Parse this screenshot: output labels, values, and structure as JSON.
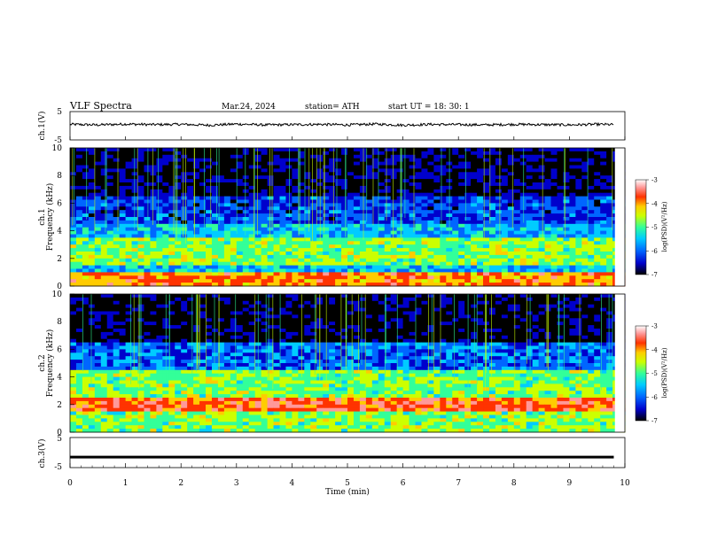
{
  "header": {
    "title": "VLF Spectra",
    "date": "Mar.24, 2024",
    "station": "station= ATH",
    "start": "start UT = 18: 30: 1"
  },
  "chart_data": [
    {
      "type": "line",
      "panel": "ch1-waveform",
      "ylabel": "ch.1(V)",
      "xlim": [
        0,
        10
      ],
      "ylim": [
        -5,
        5
      ],
      "yticks": [
        "5",
        "-5"
      ],
      "x": [
        0,
        0.5,
        1,
        1.5,
        2,
        2.5,
        3,
        3.5,
        4,
        4.5,
        5,
        5.5,
        6,
        6.5,
        7,
        7.5,
        8,
        8.5,
        9,
        9.5,
        9.8
      ],
      "values": [
        0.5,
        0.3,
        0.6,
        0.4,
        0.5,
        0.2,
        0.6,
        0.3,
        0.4,
        0.5,
        0.3,
        0.6,
        0.2,
        0.5,
        0.4,
        0.3,
        0.5,
        0.4,
        0.3,
        0.5,
        0.4
      ]
    },
    {
      "type": "heatmap",
      "panel": "ch1-spectrogram",
      "ylabel": "ch.1 Frequency (kHz)",
      "xlim": [
        0,
        10
      ],
      "ylim": [
        0,
        10
      ],
      "yticks": [
        "0",
        "2",
        "4",
        "6",
        "8",
        "10"
      ],
      "colorbar": {
        "label": "log(PSD)(V²/Hz)",
        "range": [
          -7,
          -3
        ],
        "ticks": [
          "-3",
          "-4",
          "-5",
          "-6",
          "-7"
        ]
      },
      "bands_khz": [
        {
          "from": 0,
          "to": 1,
          "level": -4.2
        },
        {
          "from": 1,
          "to": 1.5,
          "level": -5.6
        },
        {
          "from": 1.5,
          "to": 3.5,
          "level": -5.0
        },
        {
          "from": 3.5,
          "to": 4.5,
          "level": -5.7
        },
        {
          "from": 4.5,
          "to": 6.5,
          "level": -6.2
        },
        {
          "from": 6.5,
          "to": 10,
          "level": -6.7
        }
      ]
    },
    {
      "type": "heatmap",
      "panel": "ch2-spectrogram",
      "ylabel": "ch.2 Frequency (kHz)",
      "xlim": [
        0,
        10
      ],
      "ylim": [
        0,
        10
      ],
      "yticks": [
        "0",
        "2",
        "4",
        "6",
        "8",
        "10"
      ],
      "colorbar": {
        "label": "log(PSD)(V²/Hz)",
        "range": [
          -7,
          -3
        ],
        "ticks": [
          "-3",
          "-4",
          "-5",
          "-6",
          "-7"
        ]
      },
      "bands_khz": [
        {
          "from": 0,
          "to": 1.5,
          "level": -5.0
        },
        {
          "from": 1.5,
          "to": 2.5,
          "level": -4.0
        },
        {
          "from": 2.5,
          "to": 4.5,
          "level": -5.0
        },
        {
          "from": 4.5,
          "to": 6.5,
          "level": -6.0
        },
        {
          "from": 6.5,
          "to": 10,
          "level": -6.8
        }
      ]
    },
    {
      "type": "line",
      "panel": "ch3-waveform",
      "ylabel": "ch.3(V)",
      "xlabel": "Time (min)",
      "xlim": [
        0,
        10
      ],
      "ylim": [
        -5,
        5
      ],
      "yticks": [
        "5",
        "-5"
      ],
      "xticks": [
        "0",
        "1",
        "2",
        "3",
        "4",
        "5",
        "6",
        "7",
        "8",
        "9",
        "10"
      ],
      "x": [
        0,
        9.8
      ],
      "values": [
        -1.5,
        -1.5
      ]
    }
  ],
  "colors": {
    "colormap": [
      "#000000",
      "#0000cc",
      "#0066ff",
      "#00ccff",
      "#33ff99",
      "#ccff00",
      "#ffcc00",
      "#ff3300",
      "#ff9999",
      "#ffffff"
    ]
  }
}
